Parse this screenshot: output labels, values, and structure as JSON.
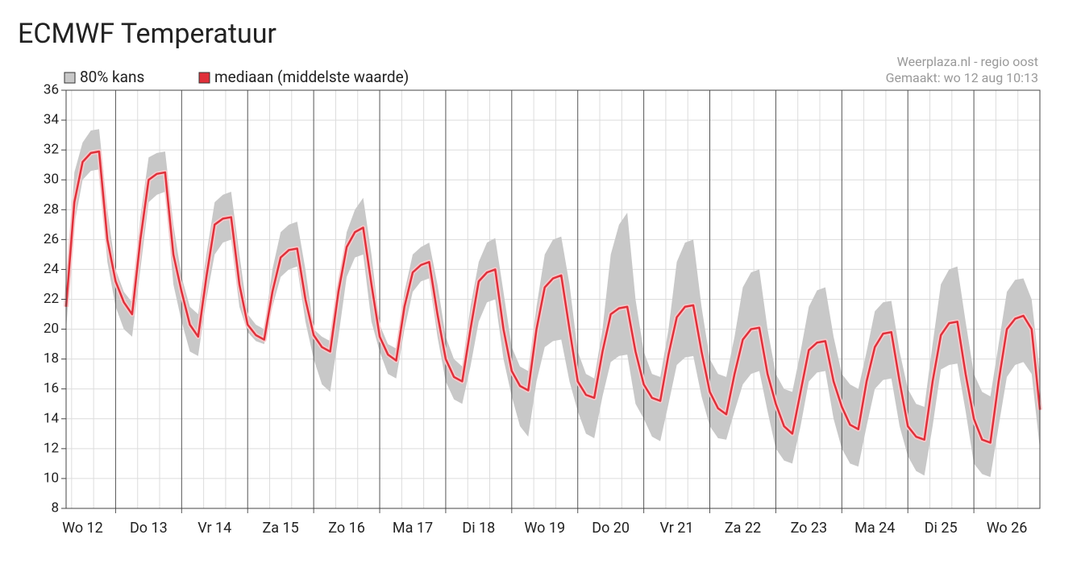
{
  "chart_data": {
    "type": "band-line",
    "title": "ECMWF Temperatuur",
    "source": "Weerplaza.nl - regio oost",
    "created": "Gemaakt: wo 12 aug 10:13",
    "x": [
      6,
      9,
      12,
      15,
      18,
      21,
      24,
      27,
      30,
      33,
      36,
      39,
      42,
      45,
      48,
      51,
      54,
      57,
      60,
      63,
      66,
      69,
      72,
      75,
      78,
      81,
      84,
      87,
      90,
      93,
      96,
      99,
      102,
      105,
      108,
      111,
      114,
      117,
      120,
      123,
      126,
      129,
      132,
      135,
      138,
      141,
      144,
      147,
      150,
      153,
      156,
      159,
      162,
      165,
      168,
      171,
      174,
      177,
      180,
      183,
      186,
      189,
      192,
      195,
      198,
      201,
      204,
      207,
      210,
      213,
      216,
      219,
      222,
      225,
      228,
      231,
      234,
      237,
      240,
      243,
      246,
      249,
      252,
      255,
      258,
      261,
      264,
      267,
      270,
      273,
      276,
      279,
      282,
      285,
      288,
      291,
      294,
      297,
      300,
      303,
      306,
      309,
      312,
      315,
      318,
      321,
      324,
      327,
      330,
      333,
      336,
      339,
      342,
      345,
      348,
      351,
      354,
      357,
      360
    ],
    "xlim": [
      6,
      360
    ],
    "xticks": [
      {
        "value": 12,
        "label": "Wo 12"
      },
      {
        "value": 36,
        "label": "Do 13"
      },
      {
        "value": 60,
        "label": "Vr 14"
      },
      {
        "value": 84,
        "label": "Za 15"
      },
      {
        "value": 108,
        "label": "Zo 16"
      },
      {
        "value": 132,
        "label": "Ma 17"
      },
      {
        "value": 156,
        "label": "Di 18"
      },
      {
        "value": 180,
        "label": "Wo 19"
      },
      {
        "value": 204,
        "label": "Do 20"
      },
      {
        "value": 228,
        "label": "Vr 21"
      },
      {
        "value": 252,
        "label": "Za 22"
      },
      {
        "value": 276,
        "label": "Zo 23"
      },
      {
        "value": 300,
        "label": "Ma 24"
      },
      {
        "value": 324,
        "label": "Di 25"
      },
      {
        "value": 348,
        "label": "Wo 26"
      }
    ],
    "xgrid_major": [
      24,
      48,
      72,
      96,
      120,
      144,
      168,
      192,
      216,
      240,
      264,
      288,
      312,
      336
    ],
    "xgrid_minor": [
      8,
      16,
      32,
      40,
      56,
      64,
      80,
      88,
      104,
      112,
      128,
      136,
      152,
      160,
      176,
      184,
      200,
      208,
      224,
      232,
      248,
      256,
      272,
      280,
      296,
      304,
      320,
      328,
      344,
      352
    ],
    "ylim": [
      8,
      36
    ],
    "yticks": [
      8,
      10,
      12,
      14,
      16,
      18,
      20,
      22,
      24,
      26,
      28,
      30,
      32,
      34,
      36
    ],
    "grid": true,
    "series": [
      {
        "name": "80% kans",
        "color": "#c8c8c8",
        "upper": [
          22,
          30.5,
          32.5,
          33.3,
          33.4,
          28,
          24,
          22.5,
          21.8,
          27.5,
          31.5,
          31.8,
          31.9,
          27,
          23.5,
          21.5,
          21,
          25,
          28.5,
          29,
          29.2,
          25,
          21,
          20.3,
          20,
          24,
          26.5,
          27,
          27.2,
          24,
          20,
          19.5,
          19.2,
          23,
          26.5,
          28,
          28.8,
          25,
          20.3,
          19,
          18.7,
          22.5,
          25,
          25.5,
          25.8,
          23,
          19.5,
          18,
          17.5,
          21.5,
          24.5,
          25.8,
          26.1,
          22.5,
          18.8,
          17.5,
          17.2,
          21.5,
          25,
          26,
          26.2,
          23,
          18.5,
          17,
          16.7,
          20,
          25,
          27,
          27.8,
          22,
          18.5,
          17,
          16.8,
          20,
          24.5,
          25.8,
          26,
          21.5,
          18,
          17,
          16.8,
          19.5,
          22.8,
          23.8,
          24,
          20,
          17,
          16,
          15.8,
          18.5,
          21.5,
          22.6,
          22.8,
          19.5,
          17,
          16.3,
          16,
          18.5,
          21.2,
          21.8,
          21.9,
          18.5,
          16,
          15,
          14.8,
          19,
          23,
          24,
          24.2,
          20.5,
          17,
          15.8,
          15.5,
          19,
          22.5,
          23.3,
          23.4,
          22,
          17
        ],
        "lower": [
          20,
          27,
          30,
          30.6,
          30.7,
          24.5,
          21.5,
          20,
          19.5,
          24,
          28.5,
          29,
          29.2,
          23,
          20.5,
          18.5,
          18.2,
          22,
          25,
          25.8,
          26,
          21.5,
          19.8,
          19.2,
          19,
          21.5,
          23.5,
          24,
          24.2,
          20.5,
          18,
          16.3,
          15.8,
          19.5,
          23.5,
          24.8,
          25,
          20.5,
          18.5,
          17,
          16.7,
          20,
          22.5,
          23.2,
          23.4,
          19.5,
          16.5,
          15.3,
          15,
          17.5,
          20.5,
          21.8,
          22,
          18,
          15.5,
          13.5,
          12.8,
          16.5,
          18.8,
          19.2,
          19.3,
          16.5,
          14.5,
          13,
          12.7,
          15.5,
          17.8,
          18.2,
          18.3,
          15,
          14,
          12.8,
          12.5,
          15,
          17.6,
          18.1,
          18.2,
          15.5,
          13.5,
          12.7,
          12.6,
          14.5,
          16.3,
          17,
          17.2,
          14.5,
          12,
          11.2,
          11,
          13.5,
          16.5,
          17.1,
          17.2,
          14,
          12,
          11,
          10.8,
          13.5,
          16,
          16.6,
          16.7,
          13.5,
          11.5,
          10.5,
          10.2,
          13.5,
          17.3,
          17.6,
          17.7,
          14.5,
          11,
          10.3,
          10.1,
          13.5,
          16.8,
          17.6,
          17.8,
          17,
          12
        ]
      },
      {
        "name": "mediaan (middelste waarde)",
        "color": "#e0303a",
        "values": [
          21.5,
          28.5,
          31.2,
          31.8,
          31.9,
          26,
          23.2,
          21.8,
          21,
          26,
          30,
          30.4,
          30.5,
          25,
          22.5,
          20.3,
          19.5,
          23.5,
          27,
          27.4,
          27.5,
          23,
          20.3,
          19.6,
          19.3,
          22.5,
          24.8,
          25.3,
          25.4,
          22,
          19.6,
          18.8,
          18.5,
          22.5,
          25.5,
          26.5,
          26.8,
          23,
          19.5,
          18.3,
          17.9,
          21.5,
          23.8,
          24.3,
          24.5,
          21,
          18,
          16.8,
          16.5,
          20,
          23.2,
          23.8,
          24,
          20,
          17.2,
          16.2,
          15.9,
          20,
          22.8,
          23.4,
          23.6,
          20,
          16.5,
          15.6,
          15.4,
          18.5,
          21,
          21.4,
          21.5,
          18.5,
          16.3,
          15.4,
          15.2,
          18.3,
          20.8,
          21.5,
          21.6,
          18.5,
          15.8,
          14.7,
          14.3,
          17,
          19.3,
          20,
          20.1,
          17,
          15,
          13.5,
          13,
          15.8,
          18.6,
          19.1,
          19.2,
          16.5,
          14.8,
          13.6,
          13.3,
          16.5,
          18.8,
          19.7,
          19.8,
          16.5,
          13.5,
          12.8,
          12.6,
          16.5,
          19.6,
          20.4,
          20.5,
          17,
          14,
          12.6,
          12.4,
          16.5,
          20,
          20.7,
          20.9,
          20,
          14.6
        ]
      }
    ]
  }
}
